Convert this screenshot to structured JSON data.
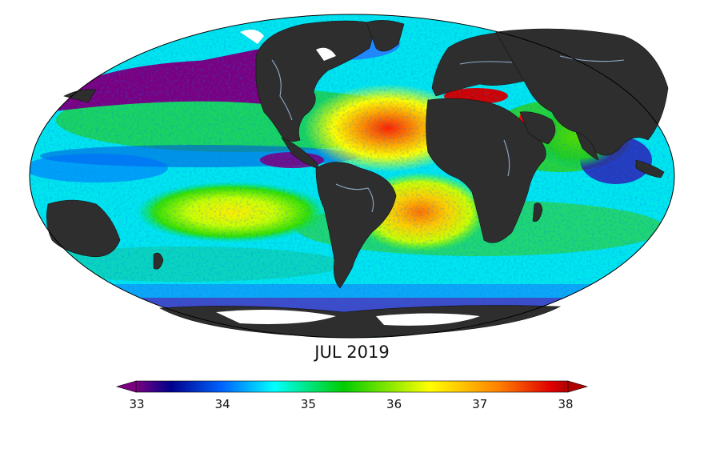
{
  "title": "JUL 2019",
  "colorbar": {
    "min": 33,
    "max": 38,
    "ticks": [
      "33",
      "34",
      "35",
      "36",
      "37",
      "38"
    ],
    "stops": [
      {
        "value": 33.0,
        "color": "#7a0080"
      },
      {
        "value": 33.4,
        "color": "#00008b"
      },
      {
        "value": 34.0,
        "color": "#0064ff"
      },
      {
        "value": 34.6,
        "color": "#00ffff"
      },
      {
        "value": 35.4,
        "color": "#00cc00"
      },
      {
        "value": 36.4,
        "color": "#ffff00"
      },
      {
        "value": 37.2,
        "color": "#ff8000"
      },
      {
        "value": 37.8,
        "color": "#e00000"
      },
      {
        "value": 38.0,
        "color": "#b00000"
      }
    ],
    "extend": "both"
  },
  "colors": {
    "land": "#2e2e2e",
    "nodata": "#ffffff",
    "rivers": "#8faac8",
    "ocean_base": "#00e5ee"
  },
  "projection": "Mollweide"
}
